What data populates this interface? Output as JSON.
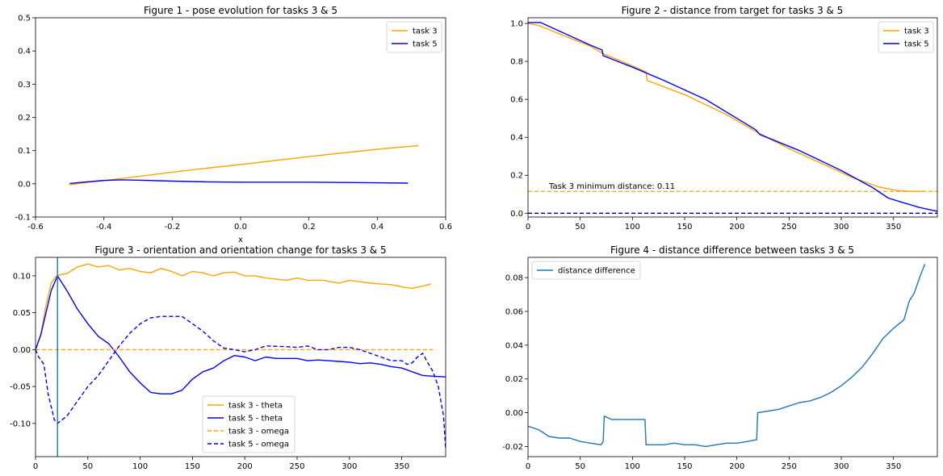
{
  "chart_data": [
    {
      "type": "line",
      "title": "Figure 1 - pose evolution for tasks 3 & 5",
      "xlabel": "x",
      "ylabel": "",
      "xlim": [
        -0.6,
        0.6
      ],
      "ylim": [
        -0.1,
        0.5
      ],
      "xticks": [
        "-0.6",
        "-0.4",
        "-0.2",
        "0.0",
        "0.2",
        "0.4",
        "0.6"
      ],
      "yticks": [
        "-0.1",
        "0.0",
        "0.1",
        "0.2",
        "0.3",
        "0.4",
        "0.5"
      ],
      "legend": "top-right",
      "series": [
        {
          "name": "task 3",
          "color": "#ffa500",
          "dash": "solid",
          "points": [
            [
              -0.5,
              -0.003
            ],
            [
              -0.45,
              0.004
            ],
            [
              -0.4,
              0.01
            ],
            [
              -0.3,
              0.022
            ],
            [
              -0.2,
              0.035
            ],
            [
              -0.1,
              0.047
            ],
            [
              0.0,
              0.058
            ],
            [
              0.1,
              0.07
            ],
            [
              0.2,
              0.082
            ],
            [
              0.3,
              0.093
            ],
            [
              0.4,
              0.104
            ],
            [
              0.52,
              0.115
            ]
          ]
        },
        {
          "name": "task 5",
          "color": "#0000ff",
          "dash": "solid",
          "points": [
            [
              -0.5,
              0.001
            ],
            [
              -0.45,
              0.006
            ],
            [
              -0.4,
              0.01
            ],
            [
              -0.35,
              0.012
            ],
            [
              -0.3,
              0.011
            ],
            [
              -0.2,
              0.008
            ],
            [
              -0.1,
              0.006
            ],
            [
              0.0,
              0.005
            ],
            [
              0.1,
              0.005
            ],
            [
              0.2,
              0.005
            ],
            [
              0.3,
              0.004
            ],
            [
              0.4,
              0.003
            ],
            [
              0.49,
              0.002
            ]
          ]
        }
      ]
    },
    {
      "type": "line",
      "title": "Figure 2 - distance from target for tasks 3 & 5",
      "xlabel": "",
      "ylabel": "",
      "xlim": [
        0,
        392
      ],
      "ylim": [
        -0.02,
        1.03
      ],
      "xticks": [
        "0",
        "50",
        "100",
        "150",
        "200",
        "250",
        "300",
        "350"
      ],
      "yticks": [
        "0.0",
        "0.2",
        "0.4",
        "0.6",
        "0.8",
        "1.0"
      ],
      "legend": "top-right",
      "annotation": "Task 3 minimum distance: 0.11",
      "hlines": [
        {
          "y": 0.115,
          "color": "#ffa500"
        },
        {
          "y": 0.0,
          "color": "#00008b"
        }
      ],
      "series": [
        {
          "name": "task 3",
          "color": "#ffa500",
          "dash": "solid",
          "points": [
            [
              0,
              1.0
            ],
            [
              10,
              0.99
            ],
            [
              30,
              0.945
            ],
            [
              60,
              0.88
            ],
            [
              72,
              0.84
            ],
            [
              90,
              0.8
            ],
            [
              113,
              0.745
            ],
            [
              114,
              0.7
            ],
            [
              150,
              0.625
            ],
            [
              190,
              0.52
            ],
            [
              220,
              0.425
            ],
            [
              250,
              0.34
            ],
            [
              280,
              0.265
            ],
            [
              310,
              0.19
            ],
            [
              335,
              0.14
            ],
            [
              355,
              0.118
            ],
            [
              370,
              0.115
            ],
            [
              380,
              0.116
            ]
          ]
        },
        {
          "name": "task 5",
          "color": "#0000ff",
          "dash": "solid",
          "points": [
            [
              0,
              1.005
            ],
            [
              12,
              1.005
            ],
            [
              30,
              0.96
            ],
            [
              60,
              0.885
            ],
            [
              71,
              0.86
            ],
            [
              72,
              0.83
            ],
            [
              100,
              0.77
            ],
            [
              130,
              0.7
            ],
            [
              170,
              0.6
            ],
            [
              218,
              0.44
            ],
            [
              222,
              0.415
            ],
            [
              260,
              0.33
            ],
            [
              300,
              0.225
            ],
            [
              330,
              0.135
            ],
            [
              345,
              0.08
            ],
            [
              360,
              0.055
            ],
            [
              375,
              0.03
            ],
            [
              392,
              0.01
            ]
          ]
        }
      ]
    },
    {
      "type": "line",
      "title": "Figure 3 - orientation and orientation change for tasks 3 & 5",
      "xlabel": "",
      "ylabel": "",
      "xlim": [
        0,
        392
      ],
      "ylim": [
        -0.145,
        0.125
      ],
      "xticks": [
        "0",
        "50",
        "100",
        "150",
        "200",
        "250",
        "300",
        "350"
      ],
      "yticks": [
        "-0.10",
        "-0.05",
        "0.00",
        "0.05",
        "0.10"
      ],
      "legend": "lower-center",
      "vline": {
        "x": 21
      },
      "series": [
        {
          "name": "task 3 - theta",
          "color": "#ffa500",
          "dash": "solid",
          "points": [
            [
              0,
              0.0
            ],
            [
              5,
              0.02
            ],
            [
              10,
              0.06
            ],
            [
              15,
              0.09
            ],
            [
              20,
              0.1
            ],
            [
              25,
              0.102
            ],
            [
              30,
              0.103
            ],
            [
              40,
              0.112
            ],
            [
              50,
              0.116
            ],
            [
              60,
              0.112
            ],
            [
              70,
              0.114
            ],
            [
              80,
              0.108
            ],
            [
              90,
              0.11
            ],
            [
              100,
              0.106
            ],
            [
              110,
              0.104
            ],
            [
              120,
              0.11
            ],
            [
              130,
              0.106
            ],
            [
              140,
              0.1
            ],
            [
              150,
              0.106
            ],
            [
              160,
              0.104
            ],
            [
              170,
              0.1
            ],
            [
              180,
              0.104
            ],
            [
              190,
              0.105
            ],
            [
              200,
              0.1
            ],
            [
              210,
              0.1
            ],
            [
              220,
              0.097
            ],
            [
              240,
              0.094
            ],
            [
              250,
              0.097
            ],
            [
              260,
              0.094
            ],
            [
              275,
              0.094
            ],
            [
              290,
              0.09
            ],
            [
              300,
              0.094
            ],
            [
              310,
              0.092
            ],
            [
              320,
              0.09
            ],
            [
              330,
              0.089
            ],
            [
              340,
              0.088
            ],
            [
              350,
              0.085
            ],
            [
              360,
              0.083
            ],
            [
              370,
              0.086
            ],
            [
              378,
              0.089
            ]
          ]
        },
        {
          "name": "task 5 - theta",
          "color": "#0000ff",
          "dash": "solid",
          "points": [
            [
              0,
              0.0
            ],
            [
              5,
              0.02
            ],
            [
              10,
              0.05
            ],
            [
              15,
              0.08
            ],
            [
              21,
              0.1
            ],
            [
              30,
              0.08
            ],
            [
              40,
              0.055
            ],
            [
              50,
              0.035
            ],
            [
              60,
              0.018
            ],
            [
              70,
              0.008
            ],
            [
              80,
              -0.01
            ],
            [
              90,
              -0.03
            ],
            [
              100,
              -0.045
            ],
            [
              110,
              -0.058
            ],
            [
              120,
              -0.06
            ],
            [
              130,
              -0.06
            ],
            [
              140,
              -0.055
            ],
            [
              150,
              -0.04
            ],
            [
              160,
              -0.03
            ],
            [
              170,
              -0.025
            ],
            [
              180,
              -0.015
            ],
            [
              190,
              -0.008
            ],
            [
              200,
              -0.01
            ],
            [
              210,
              -0.015
            ],
            [
              220,
              -0.01
            ],
            [
              230,
              -0.012
            ],
            [
              240,
              -0.012
            ],
            [
              250,
              -0.012
            ],
            [
              260,
              -0.015
            ],
            [
              270,
              -0.014
            ],
            [
              280,
              -0.015
            ],
            [
              290,
              -0.016
            ],
            [
              300,
              -0.017
            ],
            [
              310,
              -0.019
            ],
            [
              320,
              -0.018
            ],
            [
              330,
              -0.02
            ],
            [
              340,
              -0.023
            ],
            [
              350,
              -0.025
            ],
            [
              360,
              -0.03
            ],
            [
              370,
              -0.035
            ],
            [
              380,
              -0.036
            ],
            [
              392,
              -0.037
            ]
          ]
        },
        {
          "name": "task 3 - omega",
          "color": "#ffa500",
          "dash": "dashed",
          "points": [
            [
              0,
              0.0
            ],
            [
              380,
              0.0
            ]
          ]
        },
        {
          "name": "task 5 - omega",
          "color": "#0000ff",
          "dash": "dashed",
          "points": [
            [
              0,
              0.0
            ],
            [
              3,
              -0.01
            ],
            [
              8,
              -0.02
            ],
            [
              12,
              -0.06
            ],
            [
              18,
              -0.095
            ],
            [
              21,
              -0.1
            ],
            [
              30,
              -0.09
            ],
            [
              40,
              -0.07
            ],
            [
              50,
              -0.05
            ],
            [
              60,
              -0.035
            ],
            [
              70,
              -0.015
            ],
            [
              80,
              0.005
            ],
            [
              90,
              0.022
            ],
            [
              100,
              0.035
            ],
            [
              110,
              0.043
            ],
            [
              120,
              0.045
            ],
            [
              130,
              0.045
            ],
            [
              140,
              0.045
            ],
            [
              150,
              0.035
            ],
            [
              160,
              0.025
            ],
            [
              170,
              0.012
            ],
            [
              180,
              0.002
            ],
            [
              190,
              0.0
            ],
            [
              200,
              -0.003
            ],
            [
              210,
              0.0
            ],
            [
              220,
              0.005
            ],
            [
              240,
              0.004
            ],
            [
              250,
              0.003
            ],
            [
              260,
              0.005
            ],
            [
              270,
              0.0
            ],
            [
              280,
              0.0
            ],
            [
              290,
              0.003
            ],
            [
              300,
              0.003
            ],
            [
              310,
              0.0
            ],
            [
              320,
              -0.005
            ],
            [
              330,
              -0.01
            ],
            [
              340,
              -0.015
            ],
            [
              350,
              -0.015
            ],
            [
              355,
              -0.02
            ],
            [
              360,
              -0.018
            ],
            [
              365,
              -0.01
            ],
            [
              370,
              -0.005
            ],
            [
              375,
              -0.018
            ],
            [
              380,
              -0.03
            ],
            [
              385,
              -0.05
            ],
            [
              390,
              -0.09
            ],
            [
              392,
              -0.135
            ]
          ]
        }
      ]
    },
    {
      "type": "line",
      "title": "Figure 4 - distance difference between tasks 3 & 5",
      "xlabel": "",
      "ylabel": "",
      "xlim": [
        0,
        392
      ],
      "ylim": [
        -0.026,
        0.092
      ],
      "xticks": [
        "0",
        "50",
        "100",
        "150",
        "200",
        "250",
        "300",
        "350"
      ],
      "yticks": [
        "-0.02",
        "0.00",
        "0.02",
        "0.04",
        "0.06",
        "0.08"
      ],
      "legend": "top-left",
      "series": [
        {
          "name": "distance difference",
          "color": "#1f77b4",
          "dash": "solid",
          "points": [
            [
              0,
              -0.008
            ],
            [
              10,
              -0.01
            ],
            [
              20,
              -0.014
            ],
            [
              30,
              -0.015
            ],
            [
              40,
              -0.015
            ],
            [
              50,
              -0.017
            ],
            [
              60,
              -0.018
            ],
            [
              70,
              -0.019
            ],
            [
              72,
              -0.017
            ],
            [
              73,
              -0.002
            ],
            [
              80,
              -0.004
            ],
            [
              90,
              -0.004
            ],
            [
              100,
              -0.004
            ],
            [
              112,
              -0.004
            ],
            [
              113,
              -0.019
            ],
            [
              120,
              -0.019
            ],
            [
              130,
              -0.019
            ],
            [
              140,
              -0.018
            ],
            [
              150,
              -0.019
            ],
            [
              160,
              -0.019
            ],
            [
              170,
              -0.02
            ],
            [
              180,
              -0.019
            ],
            [
              190,
              -0.018
            ],
            [
              200,
              -0.018
            ],
            [
              210,
              -0.017
            ],
            [
              219,
              -0.016
            ],
            [
              220,
              0.0
            ],
            [
              230,
              0.001
            ],
            [
              240,
              0.002
            ],
            [
              250,
              0.004
            ],
            [
              260,
              0.006
            ],
            [
              270,
              0.007
            ],
            [
              280,
              0.009
            ],
            [
              290,
              0.012
            ],
            [
              300,
              0.016
            ],
            [
              310,
              0.021
            ],
            [
              320,
              0.027
            ],
            [
              330,
              0.035
            ],
            [
              340,
              0.044
            ],
            [
              350,
              0.05
            ],
            [
              360,
              0.055
            ],
            [
              365,
              0.066
            ],
            [
              370,
              0.071
            ],
            [
              375,
              0.08
            ],
            [
              380,
              0.088
            ]
          ]
        }
      ]
    }
  ]
}
